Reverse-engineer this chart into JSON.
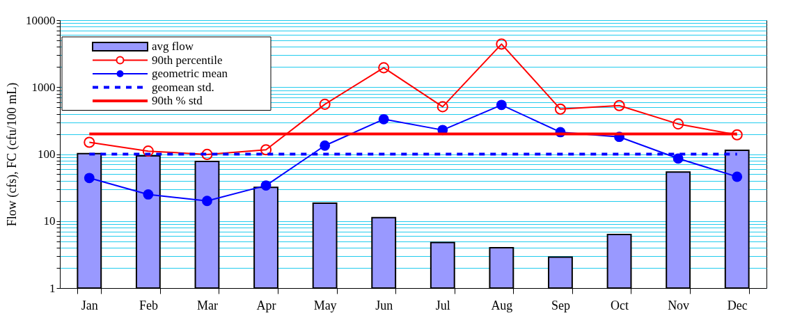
{
  "chart_data": {
    "type": "bar",
    "ylabel": "Flow (cfs),  FC (cfu/100 mL)",
    "categories": [
      "Jan",
      "Feb",
      "Mar",
      "Apr",
      "May",
      "Jun",
      "Jul",
      "Aug",
      "Sep",
      "Oct",
      "Nov",
      "Dec"
    ],
    "series": [
      {
        "name": "avg flow",
        "type": "bar",
        "color": "#9999ff",
        "values": [
          102,
          94,
          78,
          32,
          18.5,
          11.3,
          4.8,
          4.0,
          2.9,
          6.3,
          54,
          114
        ]
      },
      {
        "name": "90th percentile",
        "type": "line",
        "color": "#ff0000",
        "marker": "circle",
        "values": [
          150,
          111,
          99,
          116,
          555,
          1950,
          510,
          4400,
          470,
          530,
          282,
          194
        ]
      },
      {
        "name": "geometric mean",
        "type": "line",
        "color": "#0000ff",
        "marker": "circle",
        "values": [
          44,
          25,
          20,
          34,
          134,
          332,
          229,
          542,
          213,
          181,
          86,
          46
        ]
      }
    ],
    "ref_lines": [
      {
        "axis": "y",
        "value": 100,
        "label": "geomean std.",
        "color": "#0000ff",
        "line_style": "dashed"
      },
      {
        "axis": "y",
        "value": 200,
        "label": "90th % std",
        "color": "#ff0000",
        "line_style": "solid"
      }
    ],
    "log": "y",
    "ylim": [
      1,
      10000
    ],
    "yticks": [
      1,
      {
        "value": 2,
        "label": null
      },
      {
        "value": 3,
        "label": null
      },
      {
        "value": 4,
        "label": null
      },
      {
        "value": 5,
        "label": null
      },
      {
        "value": 6,
        "label": null
      },
      {
        "value": 7,
        "label": null
      },
      {
        "value": 8,
        "label": null
      },
      {
        "value": 9,
        "label": null
      },
      10,
      {
        "value": 20,
        "label": null
      },
      {
        "value": 30,
        "label": null
      },
      {
        "value": 40,
        "label": null
      },
      {
        "value": 50,
        "label": null
      },
      {
        "value": 60,
        "label": null
      },
      {
        "value": 70,
        "label": null
      },
      {
        "value": 80,
        "label": null
      },
      {
        "value": 90,
        "label": null
      },
      100,
      {
        "value": 200,
        "label": null
      },
      {
        "value": 300,
        "label": null
      },
      {
        "value": 400,
        "label": null
      },
      {
        "value": 500,
        "label": null
      },
      {
        "value": 600,
        "label": null
      },
      {
        "value": 700,
        "label": null
      },
      {
        "value": 800,
        "label": null
      },
      {
        "value": 900,
        "label": null
      },
      1000,
      {
        "value": 2000,
        "label": null
      },
      {
        "value": 3000,
        "label": null
      },
      {
        "value": 4000,
        "label": null
      },
      {
        "value": 5000,
        "label": null
      },
      {
        "value": 6000,
        "label": null
      },
      {
        "value": 7000,
        "label": null
      },
      {
        "value": 8000,
        "label": null
      },
      {
        "value": 9000,
        "label": null
      },
      10000
    ],
    "grid": "y",
    "legend": "top left"
  }
}
